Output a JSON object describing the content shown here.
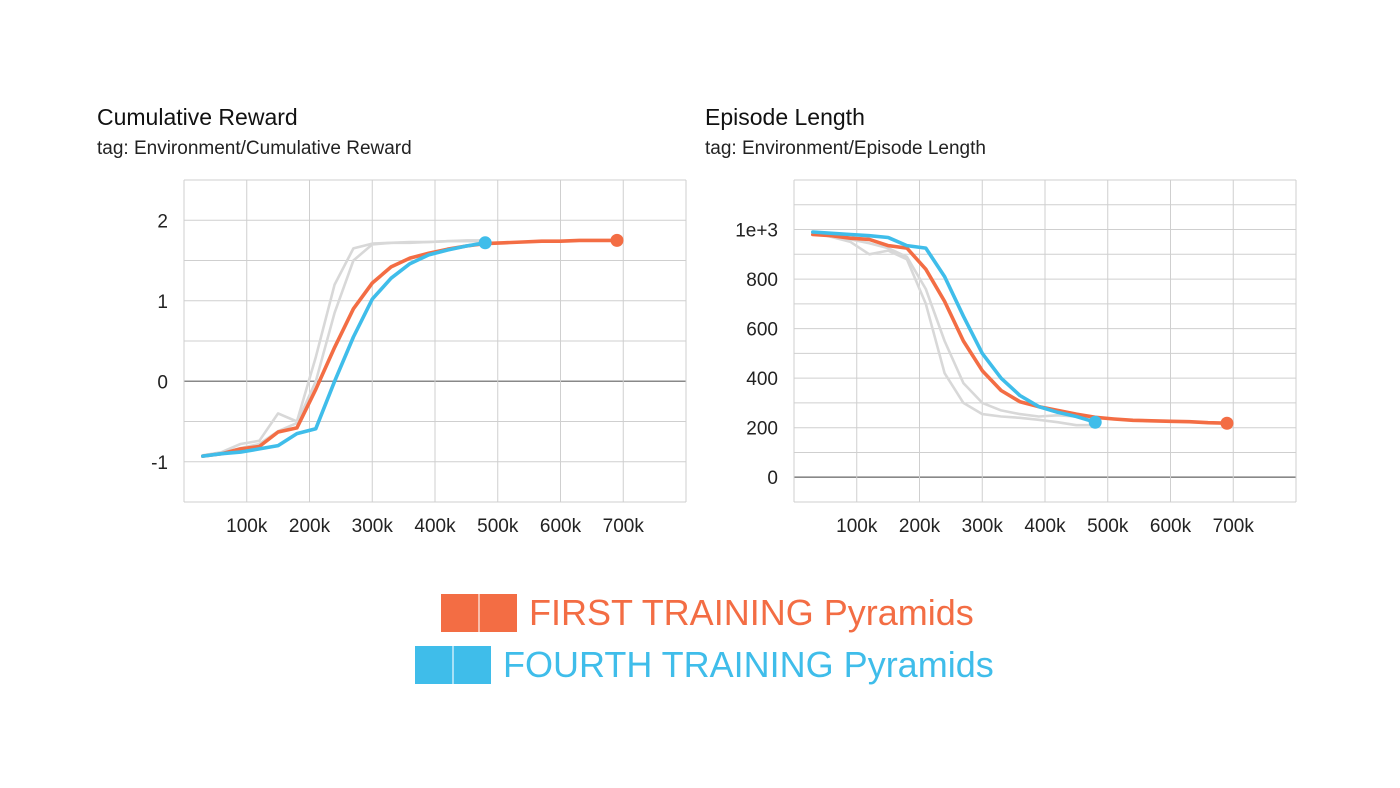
{
  "colors": {
    "first": "#f36d44",
    "fourth": "#3fbdea",
    "raw": "#d8d8d8",
    "grid": "#cfcfcf",
    "zero": "#888888"
  },
  "legend": {
    "items": [
      {
        "label": "FIRST TRAINING Pyramids",
        "color": "#f36d44"
      },
      {
        "label": "FOURTH TRAINING Pyramids",
        "color": "#3fbdea"
      }
    ]
  },
  "chart_data": [
    {
      "type": "line",
      "title": "Cumulative Reward",
      "subtitle": "tag: Environment/Cumulative Reward",
      "xlabel": "",
      "ylabel": "",
      "xlim": [
        0,
        800000
      ],
      "ylim": [
        -1.5,
        2.5
      ],
      "x_ticks": [
        100000,
        200000,
        300000,
        400000,
        500000,
        600000,
        700000
      ],
      "x_tick_labels": [
        "100k",
        "200k",
        "300k",
        "400k",
        "500k",
        "600k",
        "700k"
      ],
      "y_ticks": [
        -1,
        0,
        1,
        2
      ],
      "y_tick_labels": [
        "-1",
        "0",
        "1",
        "2"
      ],
      "grid": true,
      "series": [
        {
          "name": "FIRST TRAINING Pyramids",
          "color": "#f36d44",
          "x": [
            30000,
            60000,
            90000,
            120000,
            150000,
            180000,
            210000,
            240000,
            270000,
            300000,
            330000,
            360000,
            390000,
            420000,
            450000,
            480000,
            510000,
            540000,
            570000,
            600000,
            630000,
            660000,
            690000
          ],
          "y": [
            -0.93,
            -0.9,
            -0.84,
            -0.81,
            -0.63,
            -0.58,
            -0.1,
            0.42,
            0.9,
            1.22,
            1.42,
            1.53,
            1.59,
            1.64,
            1.68,
            1.71,
            1.72,
            1.73,
            1.74,
            1.74,
            1.75,
            1.75,
            1.75
          ]
        },
        {
          "name": "FOURTH TRAINING Pyramids",
          "color": "#3fbdea",
          "x": [
            30000,
            60000,
            90000,
            120000,
            150000,
            180000,
            210000,
            240000,
            270000,
            300000,
            330000,
            360000,
            390000,
            420000,
            450000,
            480000
          ],
          "y": [
            -0.93,
            -0.9,
            -0.88,
            -0.84,
            -0.8,
            -0.65,
            -0.59,
            0.0,
            0.55,
            1.02,
            1.28,
            1.46,
            1.57,
            1.63,
            1.68,
            1.72
          ]
        },
        {
          "name": "",
          "color": "#d8d8d8",
          "x": [
            30000,
            60000,
            90000,
            120000,
            150000,
            180000,
            210000,
            240000,
            270000,
            300000,
            330000,
            360000,
            390000,
            420000,
            450000,
            480000
          ],
          "y": [
            -0.92,
            -0.88,
            -0.78,
            -0.74,
            -0.4,
            -0.5,
            0.3,
            1.2,
            1.65,
            1.71,
            1.72,
            1.73,
            1.73,
            1.74,
            1.74,
            1.74
          ]
        },
        {
          "name": "",
          "color": "#d8d8d8",
          "x": [
            30000,
            60000,
            90000,
            120000,
            150000,
            180000,
            210000,
            240000,
            270000,
            300000,
            330000,
            360000,
            390000,
            420000,
            450000,
            480000
          ],
          "y": [
            -0.93,
            -0.89,
            -0.83,
            -0.78,
            -0.62,
            -0.52,
            0.0,
            0.85,
            1.5,
            1.7,
            1.72,
            1.72,
            1.73,
            1.74,
            1.75,
            1.75
          ]
        }
      ],
      "end_markers": [
        {
          "series": "FIRST TRAINING Pyramids",
          "x": 690000,
          "y": 1.75
        },
        {
          "series": "FOURTH TRAINING Pyramids",
          "x": 480000,
          "y": 1.72
        }
      ]
    },
    {
      "type": "line",
      "title": "Episode Length",
      "subtitle": "tag: Environment/Episode Length",
      "xlabel": "",
      "ylabel": "",
      "xlim": [
        0,
        800000
      ],
      "ylim": [
        -100,
        1200
      ],
      "x_ticks": [
        100000,
        200000,
        300000,
        400000,
        500000,
        600000,
        700000
      ],
      "x_tick_labels": [
        "100k",
        "200k",
        "300k",
        "400k",
        "500k",
        "600k",
        "700k"
      ],
      "y_ticks": [
        0,
        200,
        400,
        600,
        800,
        1000
      ],
      "y_tick_labels": [
        "0",
        "200",
        "400",
        "600",
        "800",
        "1e+3"
      ],
      "grid": true,
      "series": [
        {
          "name": "FIRST TRAINING Pyramids",
          "color": "#f36d44",
          "x": [
            30000,
            60000,
            90000,
            120000,
            150000,
            180000,
            210000,
            240000,
            270000,
            300000,
            330000,
            360000,
            390000,
            420000,
            450000,
            480000,
            510000,
            540000,
            570000,
            600000,
            630000,
            660000,
            690000
          ],
          "y": [
            980,
            975,
            965,
            960,
            935,
            925,
            840,
            710,
            550,
            430,
            350,
            305,
            285,
            270,
            255,
            242,
            235,
            230,
            228,
            226,
            224,
            220,
            218
          ]
        },
        {
          "name": "FOURTH TRAINING Pyramids",
          "color": "#3fbdea",
          "x": [
            30000,
            60000,
            90000,
            120000,
            150000,
            180000,
            210000,
            240000,
            270000,
            300000,
            330000,
            360000,
            390000,
            420000,
            450000,
            480000
          ],
          "y": [
            990,
            985,
            980,
            975,
            968,
            935,
            925,
            810,
            650,
            500,
            400,
            330,
            285,
            262,
            245,
            222
          ]
        },
        {
          "name": "",
          "color": "#d8d8d8",
          "x": [
            30000,
            60000,
            90000,
            120000,
            150000,
            180000,
            210000,
            240000,
            270000,
            300000,
            330000,
            360000,
            390000,
            420000,
            450000,
            480000
          ],
          "y": [
            990,
            970,
            950,
            900,
            915,
            880,
            700,
            420,
            300,
            255,
            245,
            240,
            232,
            222,
            210,
            210
          ]
        },
        {
          "name": "",
          "color": "#d8d8d8",
          "x": [
            30000,
            60000,
            90000,
            120000,
            150000,
            180000,
            210000,
            240000,
            270000,
            300000,
            330000,
            360000,
            390000,
            420000,
            450000,
            480000
          ],
          "y": [
            985,
            975,
            960,
            945,
            925,
            890,
            760,
            550,
            380,
            300,
            270,
            255,
            245,
            250,
            245,
            242
          ]
        }
      ],
      "end_markers": [
        {
          "series": "FIRST TRAINING Pyramids",
          "x": 690000,
          "y": 218
        },
        {
          "series": "FOURTH TRAINING Pyramids",
          "x": 480000,
          "y": 222
        }
      ]
    }
  ]
}
